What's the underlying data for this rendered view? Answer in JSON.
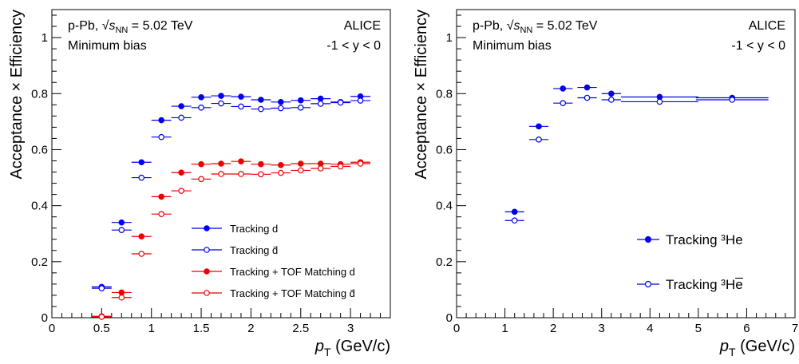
{
  "chart_data": [
    {
      "type": "scatter",
      "system_label": "p-Pb, ",
      "energy_symbol": "s",
      "energy_subscript": "NN",
      "energy_value": "= 5.02 TeV",
      "event_class": "Minimum bias",
      "experiment": "ALICE",
      "rapidity_range": "-1 < y < 0",
      "xlabel_symbol": "p",
      "xlabel_subscript": "T",
      "xlabel_unit": "(GeV/c)",
      "ylabel": "Acceptance × Efficiency",
      "xlim": [
        0,
        3.4
      ],
      "ylim": [
        0,
        1.1
      ],
      "xticks": [
        "0",
        "0.5",
        "1",
        "1.5",
        "2",
        "2.5",
        "3"
      ],
      "xtick_values": [
        0,
        0.5,
        1,
        1.5,
        2,
        2.5,
        3
      ],
      "yticks": [
        "0",
        "0.2",
        "0.4",
        "0.6",
        "0.8",
        "1"
      ],
      "ytick_values": [
        0,
        0.2,
        0.4,
        0.6,
        0.8,
        1
      ],
      "legend_position": "center-right",
      "series": [
        {
          "name": "Tracking d",
          "color": "#0000ee",
          "marker": "filled",
          "points": [
            {
              "x": 0.5,
              "xerr": 0.1,
              "y": 0.11
            },
            {
              "x": 0.7,
              "xerr": 0.1,
              "y": 0.34
            },
            {
              "x": 0.9,
              "xerr": 0.1,
              "y": 0.555
            },
            {
              "x": 1.1,
              "xerr": 0.1,
              "y": 0.705
            },
            {
              "x": 1.3,
              "xerr": 0.1,
              "y": 0.755
            },
            {
              "x": 1.5,
              "xerr": 0.1,
              "y": 0.787
            },
            {
              "x": 1.7,
              "xerr": 0.1,
              "y": 0.792
            },
            {
              "x": 1.9,
              "xerr": 0.1,
              "y": 0.789
            },
            {
              "x": 2.1,
              "xerr": 0.1,
              "y": 0.778
            },
            {
              "x": 2.3,
              "xerr": 0.1,
              "y": 0.77
            },
            {
              "x": 2.5,
              "xerr": 0.1,
              "y": 0.776
            },
            {
              "x": 2.7,
              "xerr": 0.1,
              "y": 0.782
            },
            {
              "x": 2.9,
              "xerr": 0.1,
              "y": 0.77
            },
            {
              "x": 3.1,
              "xerr": 0.1,
              "y": 0.79
            }
          ]
        },
        {
          "name": "Tracking d̄",
          "color": "#0000ee",
          "marker": "open",
          "points": [
            {
              "x": 0.5,
              "xerr": 0.1,
              "y": 0.105
            },
            {
              "x": 0.7,
              "xerr": 0.1,
              "y": 0.313
            },
            {
              "x": 0.9,
              "xerr": 0.1,
              "y": 0.5
            },
            {
              "x": 1.1,
              "xerr": 0.1,
              "y": 0.645
            },
            {
              "x": 1.3,
              "xerr": 0.1,
              "y": 0.714
            },
            {
              "x": 1.5,
              "xerr": 0.1,
              "y": 0.75
            },
            {
              "x": 1.7,
              "xerr": 0.1,
              "y": 0.765
            },
            {
              "x": 1.9,
              "xerr": 0.1,
              "y": 0.754
            },
            {
              "x": 2.1,
              "xerr": 0.1,
              "y": 0.745
            },
            {
              "x": 2.3,
              "xerr": 0.1,
              "y": 0.748
            },
            {
              "x": 2.5,
              "xerr": 0.1,
              "y": 0.75
            },
            {
              "x": 2.7,
              "xerr": 0.1,
              "y": 0.764
            },
            {
              "x": 2.9,
              "xerr": 0.1,
              "y": 0.768
            },
            {
              "x": 3.1,
              "xerr": 0.1,
              "y": 0.775
            }
          ]
        },
        {
          "name": "Tracking + TOF Matching d",
          "color": "#ee0000",
          "marker": "filled",
          "points": [
            {
              "x": 0.5,
              "xerr": 0.1,
              "y": 0.005
            },
            {
              "x": 0.7,
              "xerr": 0.1,
              "y": 0.09
            },
            {
              "x": 0.9,
              "xerr": 0.1,
              "y": 0.29
            },
            {
              "x": 1.1,
              "xerr": 0.1,
              "y": 0.432
            },
            {
              "x": 1.3,
              "xerr": 0.1,
              "y": 0.518
            },
            {
              "x": 1.5,
              "xerr": 0.1,
              "y": 0.548
            },
            {
              "x": 1.7,
              "xerr": 0.1,
              "y": 0.55
            },
            {
              "x": 1.9,
              "xerr": 0.1,
              "y": 0.558
            },
            {
              "x": 2.1,
              "xerr": 0.1,
              "y": 0.548
            },
            {
              "x": 2.3,
              "xerr": 0.1,
              "y": 0.545
            },
            {
              "x": 2.5,
              "xerr": 0.1,
              "y": 0.55
            },
            {
              "x": 2.7,
              "xerr": 0.1,
              "y": 0.55
            },
            {
              "x": 2.9,
              "xerr": 0.1,
              "y": 0.548
            },
            {
              "x": 3.1,
              "xerr": 0.1,
              "y": 0.555
            }
          ]
        },
        {
          "name": "Tracking + TOF Matching d̄",
          "color": "#ee0000",
          "marker": "open",
          "points": [
            {
              "x": 0.5,
              "xerr": 0.1,
              "y": 0.003
            },
            {
              "x": 0.7,
              "xerr": 0.1,
              "y": 0.072
            },
            {
              "x": 0.9,
              "xerr": 0.1,
              "y": 0.228
            },
            {
              "x": 1.1,
              "xerr": 0.1,
              "y": 0.37
            },
            {
              "x": 1.3,
              "xerr": 0.1,
              "y": 0.453
            },
            {
              "x": 1.5,
              "xerr": 0.1,
              "y": 0.495
            },
            {
              "x": 1.7,
              "xerr": 0.1,
              "y": 0.513
            },
            {
              "x": 1.9,
              "xerr": 0.1,
              "y": 0.513
            },
            {
              "x": 2.1,
              "xerr": 0.1,
              "y": 0.512
            },
            {
              "x": 2.3,
              "xerr": 0.1,
              "y": 0.517
            },
            {
              "x": 2.5,
              "xerr": 0.1,
              "y": 0.526
            },
            {
              "x": 2.7,
              "xerr": 0.1,
              "y": 0.533
            },
            {
              "x": 2.9,
              "xerr": 0.1,
              "y": 0.54
            },
            {
              "x": 3.1,
              "xerr": 0.1,
              "y": 0.55
            }
          ]
        }
      ]
    },
    {
      "type": "scatter",
      "system_label": "p-Pb, ",
      "energy_symbol": "s",
      "energy_subscript": "NN",
      "energy_value": "= 5.02 TeV",
      "event_class": "Minimum bias",
      "experiment": "ALICE",
      "rapidity_range": "-1 < y < 0",
      "xlabel_symbol": "p",
      "xlabel_subscript": "T",
      "xlabel_unit": "(GeV/c)",
      "ylabel": "Acceptance × Efficiency",
      "xlim": [
        0,
        7
      ],
      "ylim": [
        0,
        1.1
      ],
      "xticks": [
        "0",
        "1",
        "2",
        "3",
        "4",
        "5",
        "6",
        "7"
      ],
      "xtick_values": [
        0,
        1,
        2,
        3,
        4,
        5,
        6,
        7
      ],
      "yticks": [
        "0",
        "0.2",
        "0.4",
        "0.6",
        "0.8",
        "1"
      ],
      "ytick_values": [
        0,
        0.2,
        0.4,
        0.6,
        0.8,
        1
      ],
      "legend_position": "bottom-right",
      "series": [
        {
          "name": "Tracking ³He",
          "color": "#0000ee",
          "marker": "filled",
          "points": [
            {
              "x": 1.2,
              "xerr": 0.2,
              "y": 0.378
            },
            {
              "x": 1.7,
              "xerr": 0.2,
              "y": 0.683
            },
            {
              "x": 2.2,
              "xerr": 0.2,
              "y": 0.818
            },
            {
              "x": 2.7,
              "xerr": 0.2,
              "y": 0.822
            },
            {
              "x": 3.2,
              "xerr": 0.2,
              "y": 0.8
            },
            {
              "x": 4.2,
              "xerr": 0.8,
              "y": 0.788
            },
            {
              "x": 5.7,
              "xerr": 0.75,
              "y": 0.785
            }
          ]
        },
        {
          "name": "Tracking ³He̅",
          "color": "#0000ee",
          "marker": "open",
          "points": [
            {
              "x": 1.2,
              "xerr": 0.2,
              "y": 0.347
            },
            {
              "x": 1.7,
              "xerr": 0.2,
              "y": 0.636
            },
            {
              "x": 2.2,
              "xerr": 0.2,
              "y": 0.766
            },
            {
              "x": 2.7,
              "xerr": 0.2,
              "y": 0.785
            },
            {
              "x": 3.2,
              "xerr": 0.2,
              "y": 0.778
            },
            {
              "x": 4.2,
              "xerr": 0.8,
              "y": 0.771
            },
            {
              "x": 5.7,
              "xerr": 0.75,
              "y": 0.778
            }
          ]
        }
      ]
    }
  ]
}
